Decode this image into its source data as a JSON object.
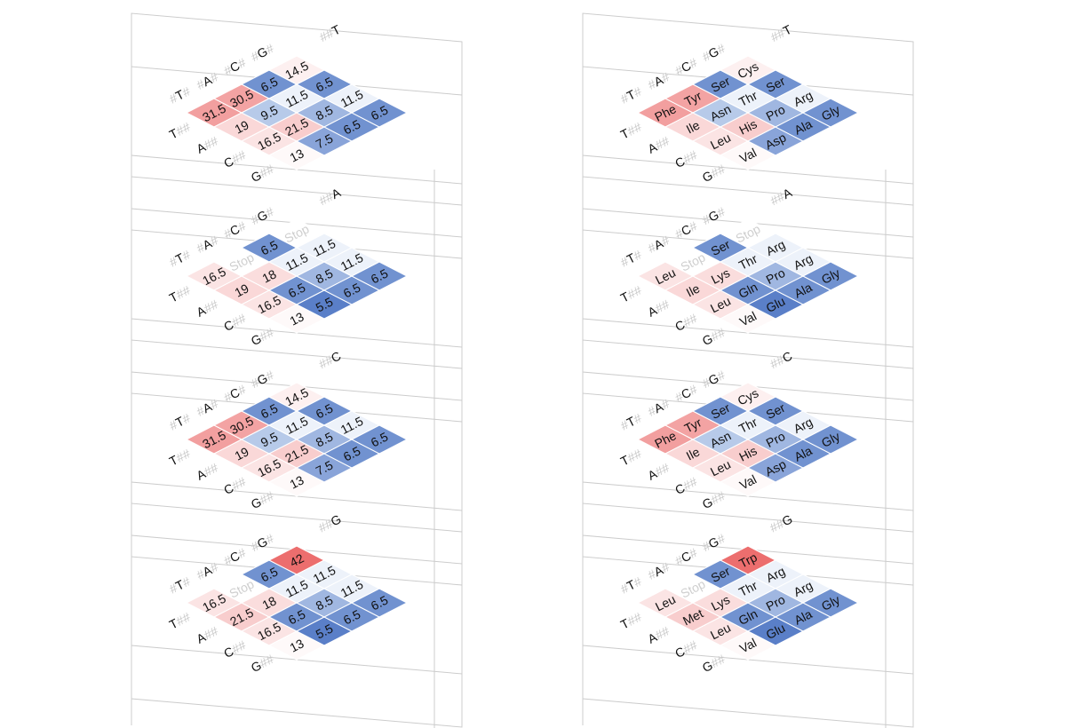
{
  "chart_data": {
    "type": "heatmap",
    "description_axis_labels": {
      "row_prefix_left": [
        "T",
        "A",
        "C",
        "G"
      ],
      "layer_labels": [
        "T",
        "A",
        "C",
        "G"
      ]
    },
    "hash_mark": "#",
    "double_hash": "##",
    "stop_label": "Stop",
    "colors": {
      "pos_strong": "#ec6e6e",
      "pos_weak": "#fbe4e4",
      "neutral": "#ffffff",
      "neg_weak": "#dbe6f6",
      "neg_strong": "#5a7fc8",
      "grid": "#cccccc",
      "cell_border": "#ffffff"
    },
    "panels": [
      {
        "name": "values",
        "layers": [
          {
            "label": "T",
            "rows": [
              [
                "31.5",
                "30.5",
                "6.5",
                "14.5"
              ],
              [
                "19",
                "9.5",
                "11.5",
                "6.5"
              ],
              [
                "16.5",
                "21.5",
                "8.5",
                "11.5"
              ],
              [
                "13",
                "7.5",
                "6.5",
                "6.5"
              ]
            ],
            "values": [
              [
                31.5,
                30.5,
                6.5,
                14.5
              ],
              [
                19,
                9.5,
                11.5,
                6.5
              ],
              [
                16.5,
                21.5,
                8.5,
                11.5
              ],
              [
                13,
                7.5,
                6.5,
                6.5
              ]
            ]
          },
          {
            "label": "A",
            "rows": [
              [
                "16.5",
                "Stop",
                "6.5",
                "Stop"
              ],
              [
                "19",
                "18",
                "11.5",
                "11.5"
              ],
              [
                "16.5",
                "6.5",
                "8.5",
                "11.5"
              ],
              [
                "13",
                "5.5",
                "6.5",
                "6.5"
              ]
            ],
            "values": [
              [
                16.5,
                null,
                6.5,
                null
              ],
              [
                19,
                18,
                11.5,
                11.5
              ],
              [
                16.5,
                6.5,
                8.5,
                11.5
              ],
              [
                13,
                5.5,
                6.5,
                6.5
              ]
            ]
          },
          {
            "label": "C",
            "rows": [
              [
                "31.5",
                "30.5",
                "6.5",
                "14.5"
              ],
              [
                "19",
                "9.5",
                "11.5",
                "6.5"
              ],
              [
                "16.5",
                "21.5",
                "8.5",
                "11.5"
              ],
              [
                "13",
                "7.5",
                "6.5",
                "6.5"
              ]
            ],
            "values": [
              [
                31.5,
                30.5,
                6.5,
                14.5
              ],
              [
                19,
                9.5,
                11.5,
                6.5
              ],
              [
                16.5,
                21.5,
                8.5,
                11.5
              ],
              [
                13,
                7.5,
                6.5,
                6.5
              ]
            ]
          },
          {
            "label": "G",
            "rows": [
              [
                "16.5",
                "Stop",
                "6.5",
                "42"
              ],
              [
                "21.5",
                "18",
                "11.5",
                "11.5"
              ],
              [
                "16.5",
                "6.5",
                "8.5",
                "11.5"
              ],
              [
                "13",
                "5.5",
                "6.5",
                "6.5"
              ]
            ],
            "values": [
              [
                16.5,
                null,
                6.5,
                42
              ],
              [
                21.5,
                18,
                11.5,
                11.5
              ],
              [
                16.5,
                6.5,
                8.5,
                11.5
              ],
              [
                13,
                5.5,
                6.5,
                6.5
              ]
            ]
          }
        ]
      },
      {
        "name": "amino-acids",
        "layers": [
          {
            "label": "T",
            "rows": [
              [
                "Phe",
                "Tyr",
                "Ser",
                "Cys"
              ],
              [
                "Ile",
                "Asn",
                "Thr",
                "Ser"
              ],
              [
                "Leu",
                "His",
                "Pro",
                "Arg"
              ],
              [
                "Val",
                "Asp",
                "Ala",
                "Gly"
              ]
            ],
            "values": [
              [
                31.5,
                30.5,
                6.5,
                14.5
              ],
              [
                19,
                9.5,
                11.5,
                6.5
              ],
              [
                16.5,
                21.5,
                8.5,
                11.5
              ],
              [
                13,
                7.5,
                6.5,
                6.5
              ]
            ]
          },
          {
            "label": "A",
            "rows": [
              [
                "Leu",
                "Stop",
                "Ser",
                "Stop"
              ],
              [
                "Ile",
                "Lys",
                "Thr",
                "Arg"
              ],
              [
                "Leu",
                "Gln",
                "Pro",
                "Arg"
              ],
              [
                "Val",
                "Glu",
                "Ala",
                "Gly"
              ]
            ],
            "values": [
              [
                16.5,
                null,
                6.5,
                null
              ],
              [
                19,
                18,
                11.5,
                11.5
              ],
              [
                16.5,
                6.5,
                8.5,
                11.5
              ],
              [
                13,
                5.5,
                6.5,
                6.5
              ]
            ]
          },
          {
            "label": "C",
            "rows": [
              [
                "Phe",
                "Tyr",
                "Ser",
                "Cys"
              ],
              [
                "Ile",
                "Asn",
                "Thr",
                "Ser"
              ],
              [
                "Leu",
                "His",
                "Pro",
                "Arg"
              ],
              [
                "Val",
                "Asp",
                "Ala",
                "Gly"
              ]
            ],
            "values": [
              [
                31.5,
                30.5,
                6.5,
                14.5
              ],
              [
                19,
                9.5,
                11.5,
                6.5
              ],
              [
                16.5,
                21.5,
                8.5,
                11.5
              ],
              [
                13,
                7.5,
                6.5,
                6.5
              ]
            ]
          },
          {
            "label": "G",
            "rows": [
              [
                "Leu",
                "Stop",
                "Ser",
                "Trp"
              ],
              [
                "Met",
                "Lys",
                "Thr",
                "Arg"
              ],
              [
                "Leu",
                "Gln",
                "Pro",
                "Arg"
              ],
              [
                "Val",
                "Glu",
                "Ala",
                "Gly"
              ]
            ],
            "values": [
              [
                16.5,
                null,
                6.5,
                42
              ],
              [
                21.5,
                18,
                11.5,
                11.5
              ],
              [
                16.5,
                6.5,
                8.5,
                11.5
              ],
              [
                13,
                5.5,
                6.5,
                6.5
              ]
            ]
          }
        ]
      }
    ],
    "color_scale": {
      "min": 5.5,
      "mid": 12,
      "max": 42
    }
  }
}
